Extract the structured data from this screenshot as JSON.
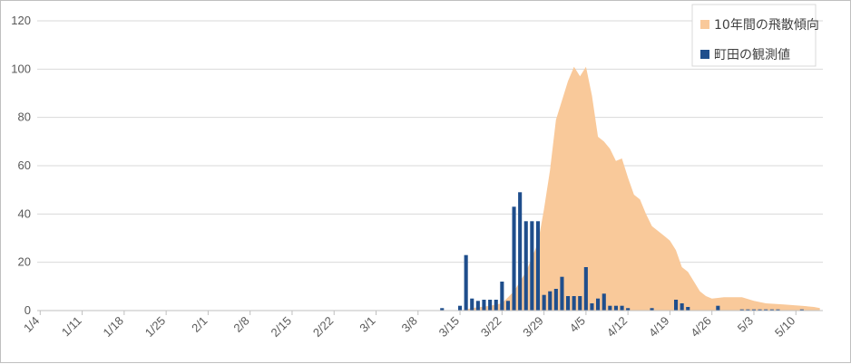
{
  "chart_data": {
    "type": "bar",
    "y_range": [
      0,
      120
    ],
    "y_ticks": [
      0,
      20,
      40,
      60,
      80,
      100,
      120
    ],
    "x_tick_labels": [
      "1/4",
      "1/11",
      "1/18",
      "1/25",
      "2/1",
      "2/8",
      "2/15",
      "2/22",
      "3/1",
      "3/8",
      "3/15",
      "3/22",
      "3/29",
      "4/5",
      "4/12",
      "4/19",
      "4/26",
      "5/3",
      "5/10"
    ],
    "grid": "horizontal",
    "legend_position": "top-right",
    "series": [
      {
        "name": "10年間の飛散傾向",
        "kind": "area",
        "color": "#f9c99a",
        "points": [
          [
            "3/15",
            0
          ],
          [
            "3/17",
            1
          ],
          [
            "3/20",
            2
          ],
          [
            "3/22",
            3
          ],
          [
            "3/24",
            8
          ],
          [
            "3/26",
            16
          ],
          [
            "3/28",
            28
          ],
          [
            "3/29",
            42
          ],
          [
            "3/30",
            58
          ],
          [
            "3/31",
            79
          ],
          [
            "4/1",
            87
          ],
          [
            "4/2",
            95
          ],
          [
            "4/3",
            101
          ],
          [
            "4/4",
            97
          ],
          [
            "4/5",
            101
          ],
          [
            "4/6",
            89
          ],
          [
            "4/7",
            72
          ],
          [
            "4/8",
            70
          ],
          [
            "4/9",
            67
          ],
          [
            "4/10",
            62
          ],
          [
            "4/11",
            63
          ],
          [
            "4/12",
            55
          ],
          [
            "4/13",
            48
          ],
          [
            "4/14",
            46
          ],
          [
            "4/15",
            40
          ],
          [
            "4/16",
            35
          ],
          [
            "4/17",
            33
          ],
          [
            "4/18",
            31
          ],
          [
            "4/19",
            29
          ],
          [
            "4/20",
            25
          ],
          [
            "4/21",
            18
          ],
          [
            "4/22",
            16
          ],
          [
            "4/23",
            12
          ],
          [
            "4/24",
            8
          ],
          [
            "4/25",
            6
          ],
          [
            "4/26",
            5
          ],
          [
            "4/28",
            5.5
          ],
          [
            "5/1",
            5.5
          ],
          [
            "5/3",
            4
          ],
          [
            "5/5",
            3
          ],
          [
            "5/8",
            2.5
          ],
          [
            "5/11",
            2
          ],
          [
            "5/13",
            1.5
          ],
          [
            "5/14",
            1
          ]
        ]
      },
      {
        "name": "町田の観測値",
        "kind": "bar",
        "color": "#1f4e8c",
        "points": [
          [
            "3/12",
            1
          ],
          [
            "3/15",
            2
          ],
          [
            "3/16",
            23
          ],
          [
            "3/17",
            5
          ],
          [
            "3/18",
            4
          ],
          [
            "3/19",
            4.5
          ],
          [
            "3/20",
            4.5
          ],
          [
            "3/21",
            4.5
          ],
          [
            "3/22",
            12
          ],
          [
            "3/23",
            4
          ],
          [
            "3/24",
            43
          ],
          [
            "3/25",
            49
          ],
          [
            "3/26",
            37
          ],
          [
            "3/27",
            37
          ],
          [
            "3/28",
            37
          ],
          [
            "3/29",
            6.5
          ],
          [
            "3/30",
            8
          ],
          [
            "3/31",
            9
          ],
          [
            "4/1",
            14
          ],
          [
            "4/2",
            6
          ],
          [
            "4/3",
            6
          ],
          [
            "4/4",
            6
          ],
          [
            "4/5",
            18
          ],
          [
            "4/6",
            3
          ],
          [
            "4/7",
            5
          ],
          [
            "4/8",
            7
          ],
          [
            "4/9",
            2
          ],
          [
            "4/10",
            2
          ],
          [
            "4/11",
            2
          ],
          [
            "4/12",
            1
          ],
          [
            "4/16",
            1
          ],
          [
            "4/20",
            4.5
          ],
          [
            "4/21",
            3
          ],
          [
            "4/22",
            1.5
          ],
          [
            "4/27",
            2
          ],
          [
            "5/1",
            0.5
          ],
          [
            "5/2",
            0.5
          ],
          [
            "5/3",
            0.5
          ],
          [
            "5/4",
            0.5
          ],
          [
            "5/5",
            0.5
          ],
          [
            "5/6",
            0.5
          ],
          [
            "5/7",
            0.5
          ],
          [
            "5/11",
            0.5
          ]
        ]
      }
    ]
  }
}
